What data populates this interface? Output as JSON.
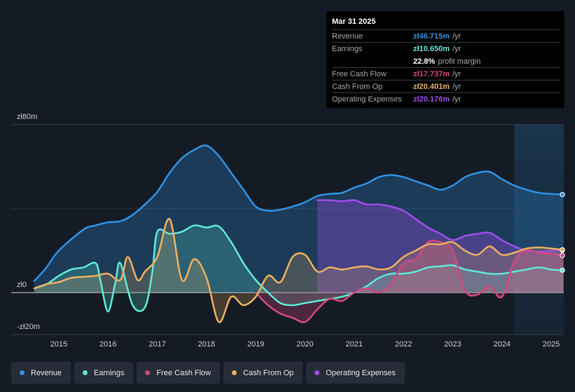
{
  "colors": {
    "revenue": "#2f8fe0",
    "earnings": "#5ee6d6",
    "fcf": "#d0497e",
    "cfo": "#e8ad5e",
    "opex": "#9b4ce8"
  },
  "tooltip": {
    "date": "Mar 31 2025",
    "rows": [
      {
        "label": "Revenue",
        "value": "zł46.715m",
        "unit": "/yr",
        "color": "#2f8fe0"
      },
      {
        "label": "Earnings",
        "value": "zł10.650m",
        "unit": "/yr",
        "color": "#5ee6d6"
      },
      {
        "label": "",
        "value": "22.8%",
        "unit": "profit margin",
        "color": "#ffffff"
      },
      {
        "label": "Free Cash Flow",
        "value": "zł17.737m",
        "unit": "/yr",
        "color": "#d0497e"
      },
      {
        "label": "Cash From Op",
        "value": "zł20.401m",
        "unit": "/yr",
        "color": "#e8ad5e"
      },
      {
        "label": "Operating Expenses",
        "value": "zł20.176m",
        "unit": "/yr",
        "color": "#9b4ce8"
      }
    ]
  },
  "legend": [
    {
      "label": "Revenue",
      "color": "#2f8fe0"
    },
    {
      "label": "Earnings",
      "color": "#5ee6d6"
    },
    {
      "label": "Free Cash Flow",
      "color": "#d0497e"
    },
    {
      "label": "Cash From Op",
      "color": "#e8ad5e"
    },
    {
      "label": "Operating Expenses",
      "color": "#9b4ce8"
    }
  ],
  "chart_data": {
    "type": "area",
    "title": "",
    "xlabel": "",
    "ylabel": "",
    "ylim": [
      -20,
      80
    ],
    "xlim": [
      2014.5,
      2025.25
    ],
    "y_ticks": [
      {
        "value": 80,
        "label": "zł80m"
      },
      {
        "value": 0,
        "label": "zł0"
      },
      {
        "value": -20,
        "label": "-zł20m"
      }
    ],
    "x_ticks": [
      2015,
      2016,
      2017,
      2018,
      2019,
      2020,
      2021,
      2022,
      2023,
      2024,
      2025
    ],
    "x_tick_labels": [
      "2015",
      "2016",
      "2017",
      "2018",
      "2019",
      "2020",
      "2021",
      "2022",
      "2023",
      "2024",
      "2025"
    ],
    "forecast_start": 2024.25,
    "series": [
      {
        "name": "Revenue",
        "points": [
          [
            2014.5,
            5.5
          ],
          [
            2014.75,
            12
          ],
          [
            2015.0,
            20
          ],
          [
            2015.5,
            30
          ],
          [
            2015.75,
            32
          ],
          [
            2016.0,
            33.5
          ],
          [
            2016.25,
            34
          ],
          [
            2016.5,
            37
          ],
          [
            2016.75,
            42
          ],
          [
            2017.0,
            48
          ],
          [
            2017.25,
            57
          ],
          [
            2017.5,
            64
          ],
          [
            2017.75,
            68
          ],
          [
            2018.0,
            70
          ],
          [
            2018.25,
            65
          ],
          [
            2018.5,
            57
          ],
          [
            2018.75,
            49
          ],
          [
            2019.0,
            41
          ],
          [
            2019.25,
            39
          ],
          [
            2019.5,
            39.5
          ],
          [
            2019.75,
            41
          ],
          [
            2020.0,
            43
          ],
          [
            2020.25,
            46
          ],
          [
            2020.5,
            47
          ],
          [
            2020.75,
            47.5
          ],
          [
            2021.0,
            50
          ],
          [
            2021.25,
            52
          ],
          [
            2021.5,
            55
          ],
          [
            2021.75,
            56
          ],
          [
            2022.0,
            55
          ],
          [
            2022.25,
            53
          ],
          [
            2022.5,
            51
          ],
          [
            2022.75,
            49
          ],
          [
            2023.0,
            51
          ],
          [
            2023.25,
            55
          ],
          [
            2023.5,
            57
          ],
          [
            2023.75,
            57.5
          ],
          [
            2024.0,
            54
          ],
          [
            2024.25,
            51
          ],
          [
            2024.5,
            49
          ],
          [
            2024.75,
            47.5
          ],
          [
            2025.0,
            47
          ],
          [
            2025.25,
            46.7
          ]
        ]
      },
      {
        "name": "Earnings",
        "points": [
          [
            2014.5,
            2
          ],
          [
            2014.75,
            4
          ],
          [
            2015.0,
            8
          ],
          [
            2015.25,
            11
          ],
          [
            2015.5,
            12
          ],
          [
            2015.75,
            14
          ],
          [
            2015.85,
            5
          ],
          [
            2016.0,
            -9
          ],
          [
            2016.15,
            5
          ],
          [
            2016.25,
            14
          ],
          [
            2016.5,
            -6
          ],
          [
            2016.75,
            -7
          ],
          [
            2016.9,
            10
          ],
          [
            2017.0,
            29
          ],
          [
            2017.25,
            28
          ],
          [
            2017.5,
            29
          ],
          [
            2017.75,
            32
          ],
          [
            2018.0,
            31
          ],
          [
            2018.25,
            31.5
          ],
          [
            2018.5,
            24
          ],
          [
            2018.75,
            14
          ],
          [
            2019.0,
            6
          ],
          [
            2019.25,
            0
          ],
          [
            2019.5,
            -5
          ],
          [
            2019.75,
            -6
          ],
          [
            2020.0,
            -5
          ],
          [
            2020.25,
            -4
          ],
          [
            2020.5,
            -3
          ],
          [
            2020.75,
            -2
          ],
          [
            2021.0,
            0
          ],
          [
            2021.25,
            3
          ],
          [
            2021.5,
            7
          ],
          [
            2021.75,
            9
          ],
          [
            2022.0,
            9
          ],
          [
            2022.25,
            10
          ],
          [
            2022.5,
            12
          ],
          [
            2022.75,
            12.5
          ],
          [
            2023.0,
            13
          ],
          [
            2023.25,
            11
          ],
          [
            2023.5,
            10
          ],
          [
            2023.75,
            9
          ],
          [
            2024.0,
            9
          ],
          [
            2024.25,
            10
          ],
          [
            2024.5,
            11
          ],
          [
            2024.75,
            12
          ],
          [
            2025.0,
            11
          ],
          [
            2025.25,
            10.65
          ]
        ]
      },
      {
        "name": "Free Cash Flow",
        "points": [
          [
            2019.0,
            0
          ],
          [
            2019.25,
            -6
          ],
          [
            2019.5,
            -10
          ],
          [
            2019.75,
            -12
          ],
          [
            2020.0,
            -14
          ],
          [
            2020.25,
            -8
          ],
          [
            2020.5,
            -3
          ],
          [
            2020.75,
            -4
          ],
          [
            2021.0,
            0
          ],
          [
            2021.25,
            2
          ],
          [
            2021.5,
            0
          ],
          [
            2021.75,
            4
          ],
          [
            2022.0,
            14
          ],
          [
            2022.25,
            16
          ],
          [
            2022.5,
            24
          ],
          [
            2022.75,
            24
          ],
          [
            2023.0,
            20
          ],
          [
            2023.25,
            1
          ],
          [
            2023.5,
            -1
          ],
          [
            2023.75,
            3
          ],
          [
            2024.0,
            -2
          ],
          [
            2024.25,
            15
          ],
          [
            2024.5,
            20
          ],
          [
            2024.75,
            19
          ],
          [
            2025.0,
            18.5
          ],
          [
            2025.25,
            17.7
          ]
        ]
      },
      {
        "name": "Cash From Op",
        "points": [
          [
            2014.5,
            2
          ],
          [
            2014.75,
            4
          ],
          [
            2015.0,
            5
          ],
          [
            2015.25,
            7
          ],
          [
            2015.5,
            7.5
          ],
          [
            2015.75,
            8
          ],
          [
            2016.0,
            9
          ],
          [
            2016.25,
            6
          ],
          [
            2016.4,
            17
          ],
          [
            2016.6,
            6
          ],
          [
            2016.75,
            10
          ],
          [
            2017.0,
            17
          ],
          [
            2017.25,
            35
          ],
          [
            2017.5,
            6
          ],
          [
            2017.75,
            16
          ],
          [
            2018.0,
            7
          ],
          [
            2018.25,
            -14
          ],
          [
            2018.5,
            -2
          ],
          [
            2018.75,
            -6
          ],
          [
            2019.0,
            -2
          ],
          [
            2019.25,
            8
          ],
          [
            2019.5,
            5
          ],
          [
            2019.75,
            17
          ],
          [
            2020.0,
            18
          ],
          [
            2020.25,
            10
          ],
          [
            2020.5,
            12
          ],
          [
            2020.75,
            11
          ],
          [
            2021.0,
            12
          ],
          [
            2021.25,
            12.5
          ],
          [
            2021.5,
            11
          ],
          [
            2021.75,
            12
          ],
          [
            2022.0,
            17
          ],
          [
            2022.25,
            20
          ],
          [
            2022.5,
            23
          ],
          [
            2022.75,
            23
          ],
          [
            2023.0,
            24
          ],
          [
            2023.25,
            20
          ],
          [
            2023.5,
            18
          ],
          [
            2023.75,
            22
          ],
          [
            2024.0,
            18
          ],
          [
            2024.25,
            19
          ],
          [
            2024.5,
            21
          ],
          [
            2024.75,
            21.5
          ],
          [
            2025.0,
            21
          ],
          [
            2025.25,
            20.4
          ]
        ]
      },
      {
        "name": "Operating Expenses",
        "points": [
          [
            2020.25,
            44
          ],
          [
            2020.5,
            44
          ],
          [
            2020.75,
            43.5
          ],
          [
            2021.0,
            44
          ],
          [
            2021.25,
            42
          ],
          [
            2021.5,
            42
          ],
          [
            2021.75,
            41
          ],
          [
            2022.0,
            39
          ],
          [
            2022.25,
            35
          ],
          [
            2022.5,
            31
          ],
          [
            2022.75,
            28
          ],
          [
            2023.0,
            25
          ],
          [
            2023.25,
            27
          ],
          [
            2023.5,
            28
          ],
          [
            2023.75,
            28.5
          ],
          [
            2024.0,
            25
          ],
          [
            2024.25,
            22
          ],
          [
            2024.5,
            20
          ],
          [
            2024.75,
            19.5
          ],
          [
            2025.0,
            20
          ],
          [
            2025.25,
            20.2
          ]
        ]
      }
    ]
  }
}
